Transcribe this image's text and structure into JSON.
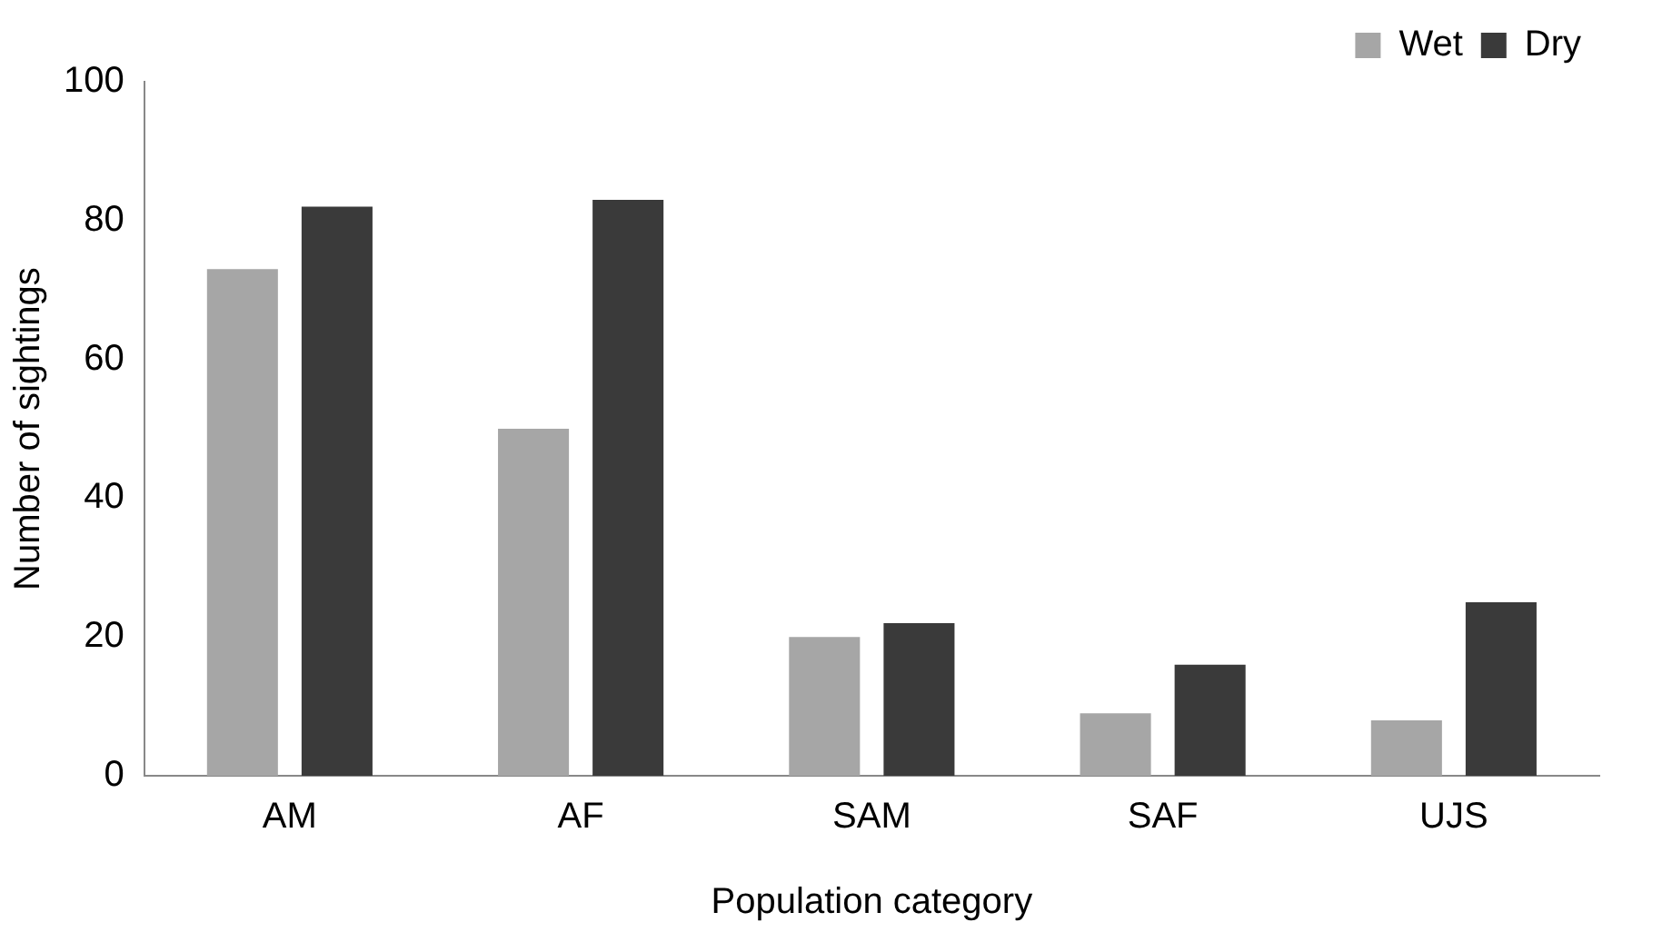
{
  "chart_data": {
    "type": "bar",
    "xlabel": "Population category",
    "ylabel": "Number of sightings",
    "categories": [
      "AM",
      "AF",
      "SAM",
      "SAF",
      "UJS"
    ],
    "series": [
      {
        "name": "Wet",
        "color": "#a6a6a6",
        "values": [
          73,
          50,
          20,
          9,
          8
        ]
      },
      {
        "name": "Dry",
        "color": "#3a3a3a",
        "values": [
          82,
          83,
          22,
          16,
          25
        ]
      }
    ],
    "ylim": [
      0,
      100
    ],
    "yticks": [
      0,
      20,
      40,
      60,
      80,
      100
    ],
    "grid": false,
    "legend": "top right"
  }
}
